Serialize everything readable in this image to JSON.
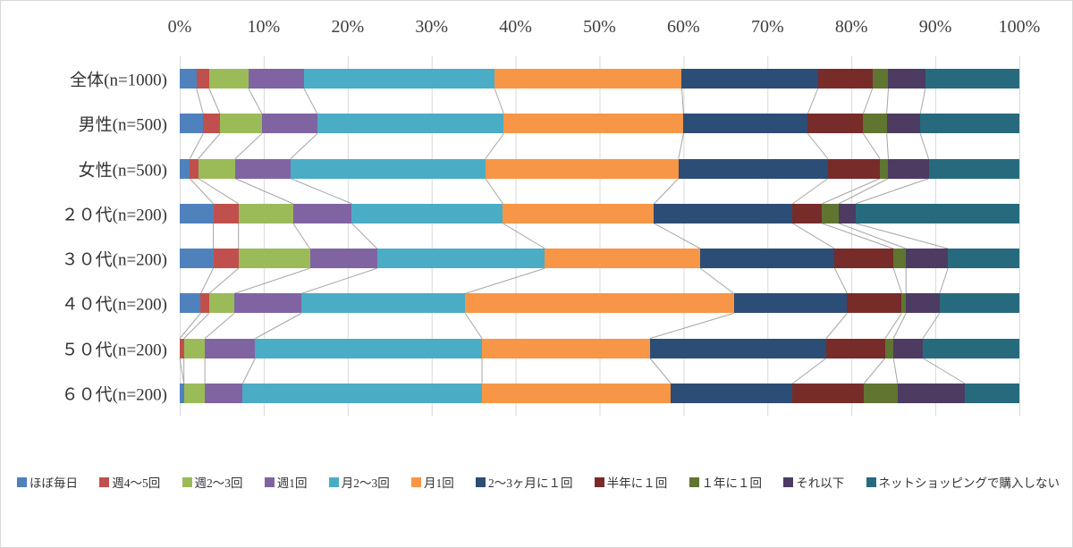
{
  "chart_data": {
    "type": "bar",
    "orientation": "horizontal-stacked",
    "title": "",
    "xlabel": "",
    "ylabel": "",
    "xlim": [
      0,
      100
    ],
    "grid": true,
    "legend_position": "bottom",
    "series_lines": true,
    "x_ticks": [
      "0%",
      "10%",
      "20%",
      "30%",
      "40%",
      "50%",
      "60%",
      "70%",
      "80%",
      "90%",
      "100%"
    ],
    "categories": [
      "全体(n=1000)",
      "男性(n=500)",
      "女性(n=500)",
      "２０代(n=200)",
      "３０代(n=200)",
      "４０代(n=200)",
      "５０代(n=200)",
      "６０代(n=200)"
    ],
    "series": [
      {
        "name": "ほぼ毎日",
        "color": "#4F81BD",
        "values": [
          2.0,
          2.8,
          1.2,
          4.0,
          4.0,
          2.5,
          0.0,
          0.5
        ]
      },
      {
        "name": "週4～5回",
        "color": "#C0504D",
        "values": [
          1.5,
          2.0,
          1.0,
          3.0,
          3.0,
          1.0,
          0.5,
          0.0
        ]
      },
      {
        "name": "週2～3回",
        "color": "#9BBB59",
        "values": [
          4.7,
          5.0,
          4.4,
          6.5,
          8.5,
          3.0,
          2.5,
          2.5
        ]
      },
      {
        "name": "週1回",
        "color": "#8064A2",
        "values": [
          6.6,
          6.6,
          6.6,
          7.0,
          8.0,
          8.0,
          6.0,
          4.5
        ]
      },
      {
        "name": "月2～3回",
        "color": "#4BACC6",
        "values": [
          22.7,
          22.2,
          23.2,
          18.0,
          20.0,
          19.5,
          27.0,
          28.5
        ]
      },
      {
        "name": "月1回",
        "color": "#F79646",
        "values": [
          22.3,
          21.4,
          23.0,
          18.0,
          18.5,
          32.0,
          20.0,
          22.5
        ]
      },
      {
        "name": "2～3ヶ月に１回",
        "color": "#2C4D75",
        "values": [
          16.2,
          14.8,
          17.8,
          16.5,
          16.0,
          13.5,
          21.0,
          14.5
        ]
      },
      {
        "name": "半年に１回",
        "color": "#772C2A",
        "values": [
          6.5,
          6.6,
          6.2,
          3.5,
          7.0,
          6.5,
          7.0,
          8.5
        ]
      },
      {
        "name": "１年に１回",
        "color": "#5F7530",
        "values": [
          1.9,
          2.8,
          1.0,
          2.0,
          1.5,
          0.5,
          1.0,
          4.0
        ]
      },
      {
        "name": "それ以下",
        "color": "#4D3B62",
        "values": [
          4.4,
          4.0,
          4.8,
          2.0,
          5.0,
          4.0,
          3.5,
          8.0
        ]
      },
      {
        "name": "ネットショッピングで購入しない",
        "color": "#276A7D",
        "values": [
          11.2,
          11.8,
          10.8,
          19.5,
          8.5,
          9.5,
          11.5,
          6.5
        ]
      }
    ],
    "style": {
      "gridline_color": "#D9D9D9",
      "series_line_color": "#A6A6A6",
      "text_color": "#333333",
      "background": "#FFFFFF"
    }
  }
}
